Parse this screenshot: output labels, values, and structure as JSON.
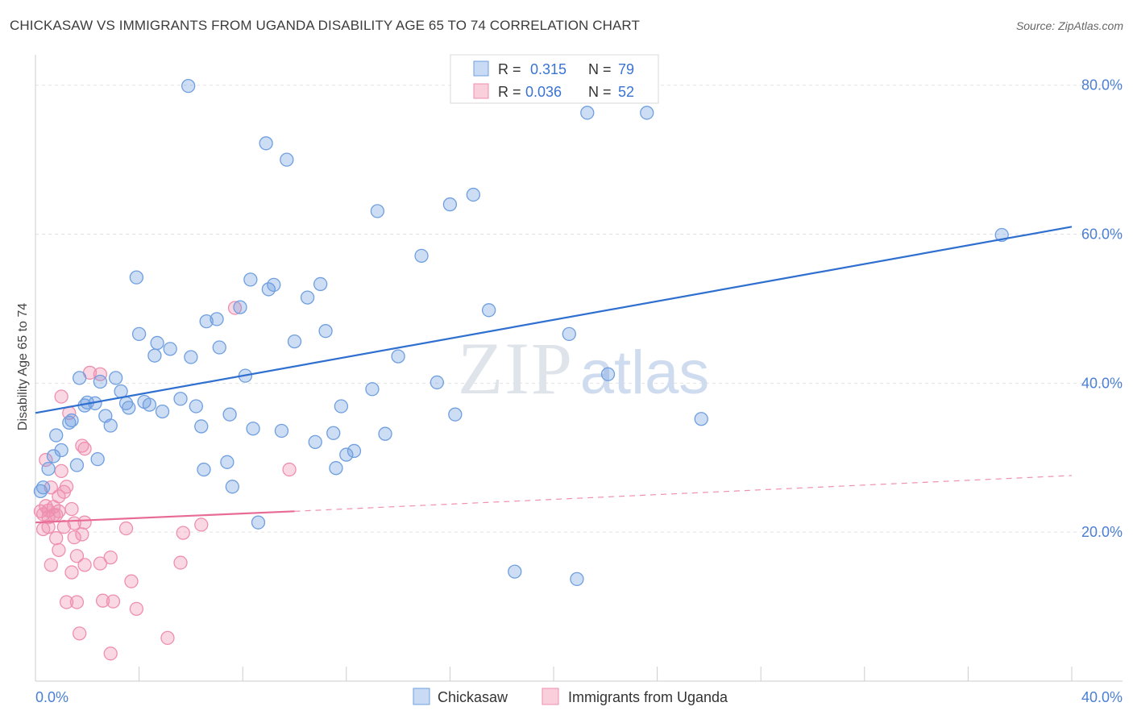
{
  "title": "CHICKASAW VS IMMIGRANTS FROM UGANDA DISABILITY AGE 65 TO 74 CORRELATION CHART",
  "source": "Source: ZipAtlas.com",
  "watermark": {
    "zip": "ZIP",
    "atlas": "atlas"
  },
  "legend": {
    "row1": {
      "r_label": "R = ",
      "r_value": "0.315",
      "n_label": "N = ",
      "n_value": "79"
    },
    "row2": {
      "r_label": "R = ",
      "r_value": "0.036",
      "n_label": "N = ",
      "n_value": "52"
    }
  },
  "bottom_legend": {
    "series1": "Chickasaw",
    "series2": "Immigrants from Uganda"
  },
  "chart_data": {
    "type": "scatter",
    "ylabel": "Disability Age 65 to 74",
    "xlim": [
      0,
      40
    ],
    "ylim": [
      0,
      83
    ],
    "x_tick_labels": [
      "0.0%",
      "40.0%"
    ],
    "y_ticks": [
      20,
      40,
      60,
      80
    ],
    "y_tick_labels": [
      "20.0%",
      "40.0%",
      "60.0%",
      "80.0%"
    ],
    "grid": true,
    "colors": {
      "chickasaw": "#6f9fe0",
      "uganda": "#ef8faf",
      "trend_blue": "#2e6fd0",
      "trend_pink": "#e86b95"
    },
    "series": [
      {
        "name": "Chickasaw",
        "trend": {
          "x": [
            0,
            40
          ],
          "y": [
            36.0,
            61.0
          ],
          "style": "solid"
        },
        "points": [
          [
            0.2,
            25.5
          ],
          [
            0.5,
            28.5
          ],
          [
            0.7,
            30.2
          ],
          [
            0.8,
            33.0
          ],
          [
            1.0,
            31.0
          ],
          [
            1.3,
            34.7
          ],
          [
            1.4,
            35.0
          ],
          [
            1.6,
            29.0
          ],
          [
            1.7,
            40.7
          ],
          [
            2.0,
            37.4
          ],
          [
            2.3,
            37.3
          ],
          [
            2.4,
            29.8
          ],
          [
            2.5,
            40.2
          ],
          [
            2.7,
            35.6
          ],
          [
            2.9,
            34.3
          ],
          [
            3.1,
            40.7
          ],
          [
            3.3,
            38.9
          ],
          [
            3.5,
            37.3
          ],
          [
            3.6,
            36.7
          ],
          [
            3.9,
            54.2
          ],
          [
            4.0,
            46.6
          ],
          [
            4.2,
            37.5
          ],
          [
            4.4,
            37.1
          ],
          [
            4.6,
            43.7
          ],
          [
            4.7,
            45.4
          ],
          [
            4.9,
            36.2
          ],
          [
            5.2,
            44.6
          ],
          [
            5.6,
            37.9
          ],
          [
            6.0,
            43.5
          ],
          [
            6.2,
            36.9
          ],
          [
            6.4,
            34.2
          ],
          [
            6.5,
            28.4
          ],
          [
            6.6,
            48.3
          ],
          [
            7.0,
            48.6
          ],
          [
            7.1,
            44.8
          ],
          [
            7.4,
            29.4
          ],
          [
            7.5,
            35.8
          ],
          [
            7.6,
            26.1
          ],
          [
            7.9,
            50.2
          ],
          [
            8.1,
            41.0
          ],
          [
            8.3,
            53.9
          ],
          [
            8.4,
            33.9
          ],
          [
            8.6,
            21.3
          ],
          [
            8.9,
            72.2
          ],
          [
            9.0,
            52.6
          ],
          [
            9.2,
            53.2
          ],
          [
            9.5,
            33.6
          ],
          [
            9.7,
            70.0
          ],
          [
            10.0,
            45.6
          ],
          [
            10.5,
            51.5
          ],
          [
            10.8,
            32.1
          ],
          [
            11.0,
            53.3
          ],
          [
            11.2,
            47.0
          ],
          [
            11.5,
            33.3
          ],
          [
            11.6,
            28.6
          ],
          [
            11.8,
            36.9
          ],
          [
            12.0,
            30.4
          ],
          [
            12.3,
            30.9
          ],
          [
            13.0,
            39.2
          ],
          [
            13.2,
            63.1
          ],
          [
            13.5,
            33.2
          ],
          [
            14.0,
            43.6
          ],
          [
            14.9,
            57.1
          ],
          [
            15.5,
            40.1
          ],
          [
            16.0,
            64.0
          ],
          [
            16.2,
            35.8
          ],
          [
            16.9,
            65.3
          ],
          [
            17.5,
            49.8
          ],
          [
            18.5,
            14.7
          ],
          [
            20.6,
            46.6
          ],
          [
            20.9,
            13.7
          ],
          [
            21.3,
            76.3
          ],
          [
            22.1,
            41.2
          ],
          [
            23.6,
            76.3
          ],
          [
            25.7,
            35.2
          ],
          [
            37.3,
            59.9
          ],
          [
            5.9,
            79.9
          ],
          [
            0.3,
            26.0
          ],
          [
            1.9,
            37.0
          ]
        ]
      },
      {
        "name": "Immigrants from Uganda",
        "trend": {
          "x": [
            0,
            10
          ],
          "y": [
            21.3,
            22.8
          ],
          "style": "solid",
          "extended": {
            "x": [
              10,
              40
            ],
            "y": [
              22.8,
              27.6
            ],
            "style": "dashed"
          }
        },
        "points": [
          [
            0.2,
            22.8
          ],
          [
            0.3,
            22.4
          ],
          [
            0.3,
            20.4
          ],
          [
            0.4,
            23.5
          ],
          [
            0.5,
            20.7
          ],
          [
            0.5,
            22.9
          ],
          [
            0.6,
            15.6
          ],
          [
            0.6,
            26.0
          ],
          [
            0.7,
            22.3
          ],
          [
            0.8,
            19.2
          ],
          [
            0.8,
            22.3
          ],
          [
            0.9,
            17.6
          ],
          [
            0.9,
            22.8
          ],
          [
            1.0,
            38.2
          ],
          [
            1.0,
            28.2
          ],
          [
            1.1,
            20.7
          ],
          [
            1.1,
            25.4
          ],
          [
            1.2,
            10.6
          ],
          [
            1.3,
            36.0
          ],
          [
            1.4,
            23.1
          ],
          [
            1.4,
            14.6
          ],
          [
            1.5,
            21.2
          ],
          [
            1.5,
            19.3
          ],
          [
            1.6,
            10.6
          ],
          [
            1.6,
            16.8
          ],
          [
            1.7,
            6.4
          ],
          [
            1.8,
            31.6
          ],
          [
            1.8,
            19.7
          ],
          [
            1.9,
            31.2
          ],
          [
            1.9,
            21.3
          ],
          [
            1.9,
            15.6
          ],
          [
            2.1,
            41.4
          ],
          [
            2.5,
            15.8
          ],
          [
            2.5,
            41.2
          ],
          [
            2.6,
            10.8
          ],
          [
            2.9,
            3.7
          ],
          [
            2.9,
            16.6
          ],
          [
            3.0,
            10.7
          ],
          [
            3.5,
            20.5
          ],
          [
            3.7,
            13.4
          ],
          [
            3.9,
            9.7
          ],
          [
            5.1,
            5.8
          ],
          [
            5.6,
            15.9
          ],
          [
            5.7,
            19.9
          ],
          [
            6.4,
            21.0
          ],
          [
            7.7,
            50.1
          ],
          [
            9.8,
            28.4
          ],
          [
            0.4,
            29.7
          ],
          [
            0.7,
            23.4
          ],
          [
            1.2,
            26.1
          ],
          [
            0.5,
            22.0
          ],
          [
            0.9,
            24.8
          ]
        ]
      }
    ]
  }
}
